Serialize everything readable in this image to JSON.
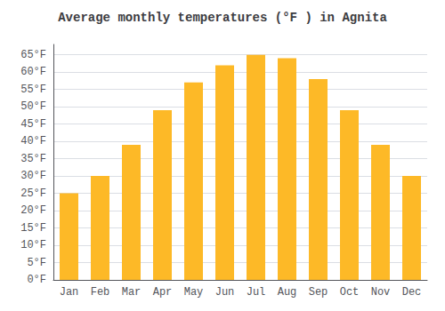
{
  "chart_data": {
    "type": "bar",
    "title": "Average monthly temperatures (°F ) in Agnita",
    "categories": [
      "Jan",
      "Feb",
      "Mar",
      "Apr",
      "May",
      "Jun",
      "Jul",
      "Aug",
      "Sep",
      "Oct",
      "Nov",
      "Dec"
    ],
    "values": [
      25,
      30,
      39,
      49,
      57,
      62,
      65,
      64,
      58,
      49,
      39,
      30
    ],
    "color": "#FDB927",
    "ylim": [
      0,
      68
    ],
    "yticks": [
      {
        "value": 0,
        "label": "0°F"
      },
      {
        "value": 5,
        "label": "5°F"
      },
      {
        "value": 10,
        "label": "10°F"
      },
      {
        "value": 15,
        "label": "15°F"
      },
      {
        "value": 20,
        "label": "20°F"
      },
      {
        "value": 25,
        "label": "25°F"
      },
      {
        "value": 30,
        "label": "30°F"
      },
      {
        "value": 35,
        "label": "35°F"
      },
      {
        "value": 40,
        "label": "40°F"
      },
      {
        "value": 45,
        "label": "45°F"
      },
      {
        "value": 50,
        "label": "50°F"
      },
      {
        "value": 55,
        "label": "55°F"
      },
      {
        "value": 60,
        "label": "60°F"
      },
      {
        "value": 65,
        "label": "65°F"
      }
    ],
    "grid": true
  }
}
